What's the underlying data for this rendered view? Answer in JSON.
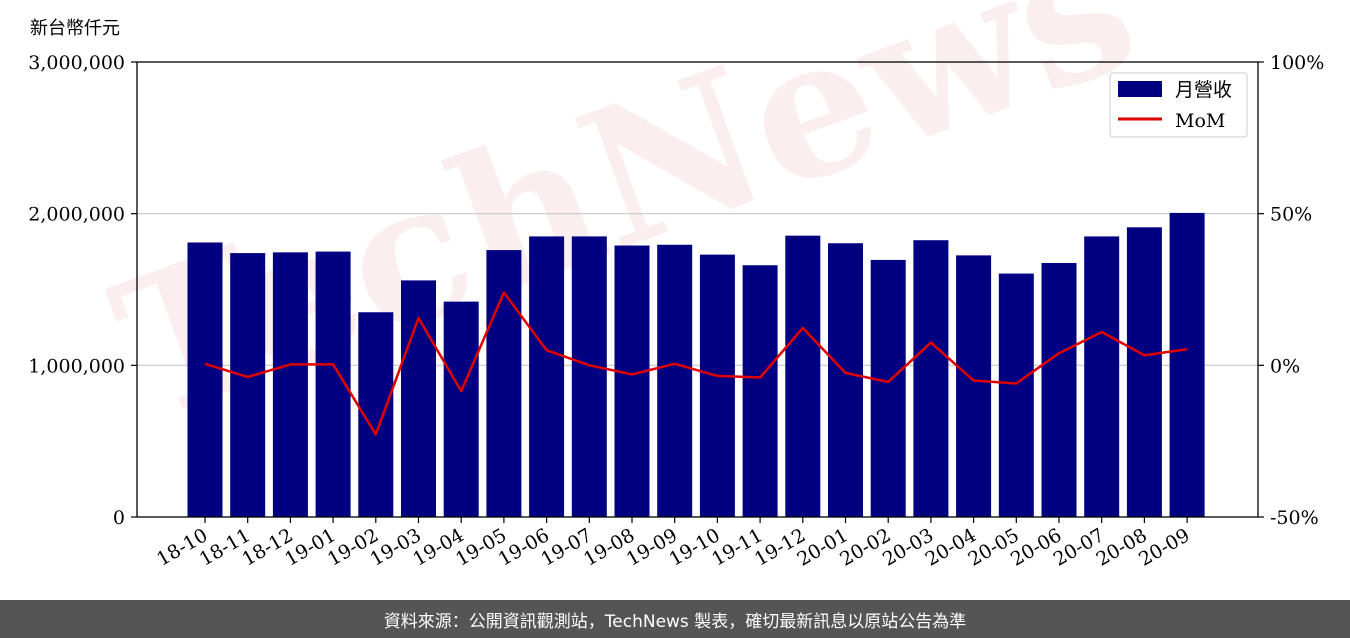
{
  "chart_data": {
    "type": "bar",
    "unit_label": "新台幣仟元",
    "categories": [
      "18-10",
      "18-11",
      "18-12",
      "19-01",
      "19-02",
      "19-03",
      "19-04",
      "19-05",
      "19-06",
      "19-07",
      "19-08",
      "19-09",
      "19-10",
      "19-11",
      "19-12",
      "20-01",
      "20-02",
      "20-03",
      "20-04",
      "20-05",
      "20-06",
      "20-07",
      "20-08",
      "20-09"
    ],
    "series": [
      {
        "name": "月營收",
        "kind": "bar",
        "axis": "left",
        "color": "#000080",
        "values": [
          1810000,
          1740000,
          1745000,
          1750000,
          1350000,
          1560000,
          1420000,
          1760000,
          1850000,
          1850000,
          1790000,
          1795000,
          1730000,
          1660000,
          1855000,
          1805000,
          1695000,
          1825000,
          1725000,
          1605000,
          1675000,
          1850000,
          1910000,
          2005000
        ]
      },
      {
        "name": "MoM",
        "kind": "line",
        "axis": "right",
        "color": "#e00000",
        "values": [
          0.5,
          -3.8,
          0.3,
          0.3,
          -22.8,
          15.6,
          -8.5,
          24,
          5,
          0,
          -3,
          0.5,
          -3.5,
          -4,
          12.3,
          -2.5,
          -5.5,
          7.5,
          -5,
          -6,
          4,
          11,
          3.3,
          5.3
        ]
      }
    ],
    "y_left": {
      "min": 0,
      "max": 3000000,
      "ticks": [
        0,
        1000000,
        2000000,
        3000000
      ],
      "tick_labels": [
        "0",
        "1,000,000",
        "2,000,000",
        "3,000,000"
      ]
    },
    "y_right": {
      "min": -50,
      "max": 100,
      "ticks": [
        -50,
        0,
        50,
        100
      ],
      "tick_labels": [
        "-50%",
        "0%",
        "50%",
        "100%"
      ]
    },
    "grid": "horizontal",
    "legend_position": "top-right",
    "watermark": "TechNews"
  },
  "footer": {
    "text": "資料來源：公開資訊觀測站，TechNews 製表，確切最新訊息以原站公告為準"
  }
}
